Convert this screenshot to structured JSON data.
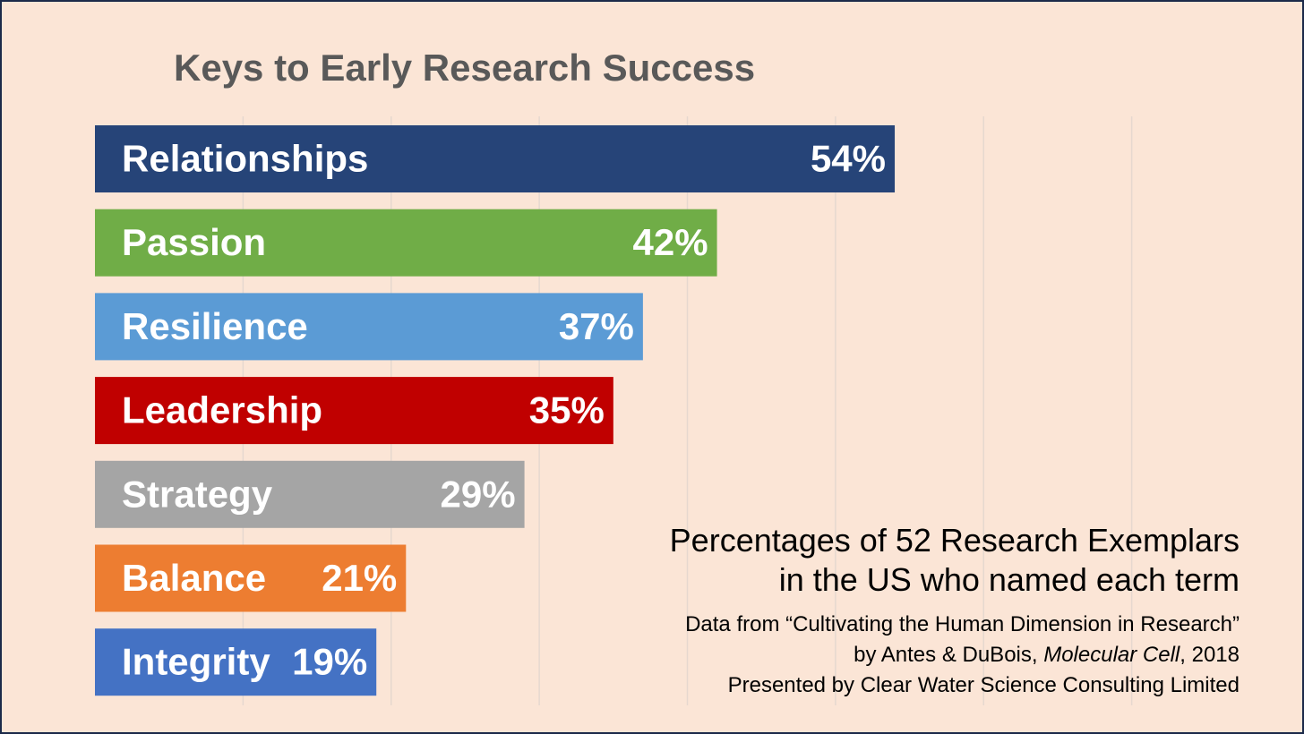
{
  "chart_data": {
    "type": "bar",
    "orientation": "horizontal",
    "title": "Keys to Early Research Success",
    "categories": [
      "Relationships",
      "Passion",
      "Resilience",
      "Leadership",
      "Strategy",
      "Balance",
      "Integrity"
    ],
    "values": [
      54,
      42,
      37,
      35,
      29,
      21,
      19
    ],
    "value_labels": [
      "54%",
      "42%",
      "37%",
      "35%",
      "29%",
      "21%",
      "19%"
    ],
    "colors": [
      "#264478",
      "#70ad47",
      "#5b9bd5",
      "#c00000",
      "#a5a5a5",
      "#ed7d31",
      "#4472c4"
    ],
    "xlim": [
      0,
      80
    ],
    "grid": true
  },
  "caption": {
    "line1": "Percentages of 52 Research Exemplars",
    "line2": "in the US who named each term",
    "source1": "Data from “Cultivating the Human Dimension in Research”",
    "source2_prefix": "by Antes & DuBois, ",
    "source2_journal": "Molecular Cell",
    "source2_suffix": ", 2018",
    "presenter": "Presented by Clear Water Science Consulting Limited"
  }
}
